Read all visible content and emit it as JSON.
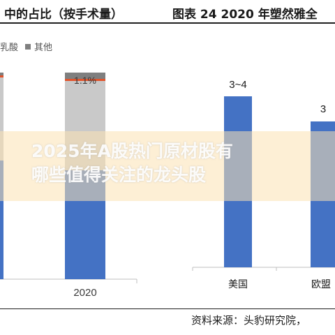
{
  "header": {
    "left_title": "中的占比（按手术量）",
    "right_title": "图表 24 2020 年塑然雅全"
  },
  "legend": {
    "item1_label": "乳酸",
    "item2_label": "其他"
  },
  "banner": {
    "line1": "2025年A股热门原材股有",
    "line2": "哪些值得关注的龙头股"
  },
  "source": "资料来源：头豹研究院，",
  "colors": {
    "blue": "#4472c4",
    "grey": "#c9c9c9",
    "red": "#e0532b",
    "dark": "#7f7f7f"
  },
  "chart_data": [
    {
      "type": "bar",
      "stacked": true,
      "categories": [
        "2020"
      ],
      "value_label": "1.1%"
    },
    {
      "type": "bar",
      "categories": [
        "美国",
        "欧盟"
      ],
      "value_labels": [
        "3~4",
        "3"
      ]
    }
  ]
}
